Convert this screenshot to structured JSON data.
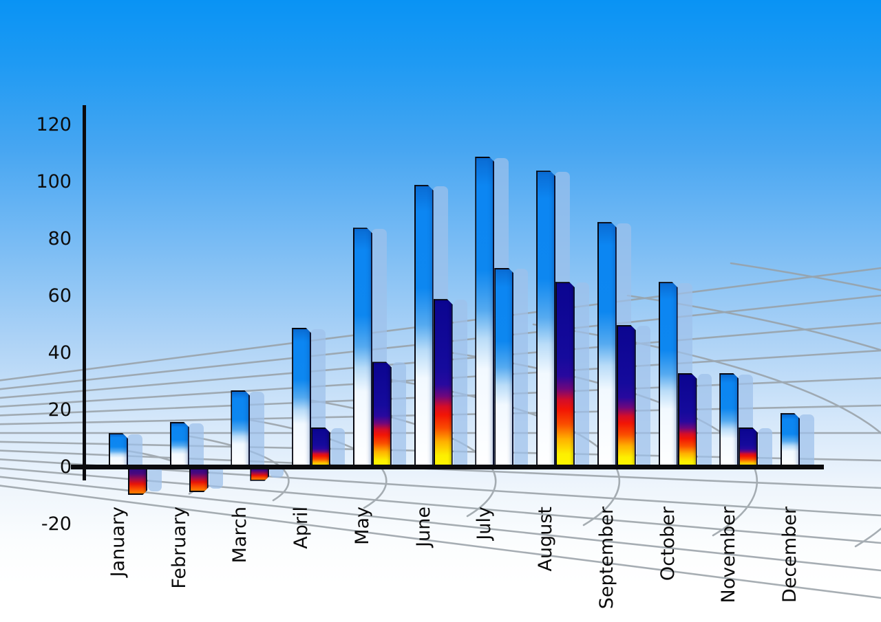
{
  "chart_data": {
    "type": "bar",
    "title": "",
    "categories": [
      "January",
      "February",
      "March",
      "April",
      "May",
      "June",
      "July",
      "August",
      "September",
      "October",
      "November",
      "December"
    ],
    "series": [
      {
        "name": "primary-blue-bars",
        "values": [
          12,
          16,
          27,
          49,
          84,
          99,
          109,
          104,
          86,
          65,
          33,
          19
        ]
      },
      {
        "name": "secondary-gradient-bars",
        "values": [
          -9,
          -8,
          -4,
          14,
          37,
          59,
          70,
          65,
          50,
          33,
          14,
          null
        ],
        "styles": [
          "hot",
          "hot",
          "hot",
          "hot",
          "hot",
          "hot",
          "cool-blue",
          "hot",
          "hot",
          "hot",
          "hot",
          null
        ]
      }
    ],
    "ylim": [
      -20,
      120
    ],
    "yticks": [
      120,
      100,
      80,
      60,
      40,
      20,
      0,
      -20
    ],
    "xlabel": "",
    "ylabel": "",
    "legend": "none",
    "grid": "curved gray perspective mesh behind bars",
    "x_label_rotation": -90
  },
  "colors": {
    "background_top": "#0993f4",
    "background_bottom": "#ffffff",
    "bar_blue": "#0c86f2",
    "bar_echo": "rgba(158,193,234,0.72)",
    "hot_top": "#150a9c",
    "hot_mid": "#f21505",
    "hot_bottom": "#fff800",
    "axis": "#0b0b0e",
    "grid_line": "#98a0a6",
    "label_text": "#0a0a0a"
  }
}
